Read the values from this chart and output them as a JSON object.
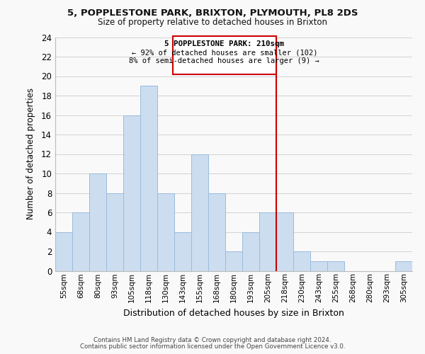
{
  "title1": "5, POPPLESTONE PARK, BRIXTON, PLYMOUTH, PL8 2DS",
  "title2": "Size of property relative to detached houses in Brixton",
  "xlabel": "Distribution of detached houses by size in Brixton",
  "ylabel": "Number of detached properties",
  "bar_labels": [
    "55sqm",
    "68sqm",
    "80sqm",
    "93sqm",
    "105sqm",
    "118sqm",
    "130sqm",
    "143sqm",
    "155sqm",
    "168sqm",
    "180sqm",
    "193sqm",
    "205sqm",
    "218sqm",
    "230sqm",
    "243sqm",
    "255sqm",
    "268sqm",
    "280sqm",
    "293sqm",
    "305sqm"
  ],
  "bar_values": [
    4,
    6,
    10,
    8,
    16,
    19,
    8,
    4,
    12,
    8,
    2,
    4,
    6,
    6,
    2,
    1,
    1,
    0,
    0,
    0,
    1
  ],
  "bar_color": "#ccddf0",
  "bar_edge_color": "#99bbdd",
  "grid_color": "#cccccc",
  "vline_color": "#cc0000",
  "annotation_text_line1": "5 POPPLESTONE PARK: 210sqm",
  "annotation_text_line2": "← 92% of detached houses are smaller (102)",
  "annotation_text_line3": "8% of semi-detached houses are larger (9) →",
  "annotation_box_color": "#ffffff",
  "annotation_box_edge_color": "#cc0000",
  "ylim": [
    0,
    24
  ],
  "yticks": [
    0,
    2,
    4,
    6,
    8,
    10,
    12,
    14,
    16,
    18,
    20,
    22,
    24
  ],
  "footer1": "Contains HM Land Registry data © Crown copyright and database right 2024.",
  "footer2": "Contains public sector information licensed under the Open Government Licence v3.0.",
  "bg_color": "#f9f9f9"
}
